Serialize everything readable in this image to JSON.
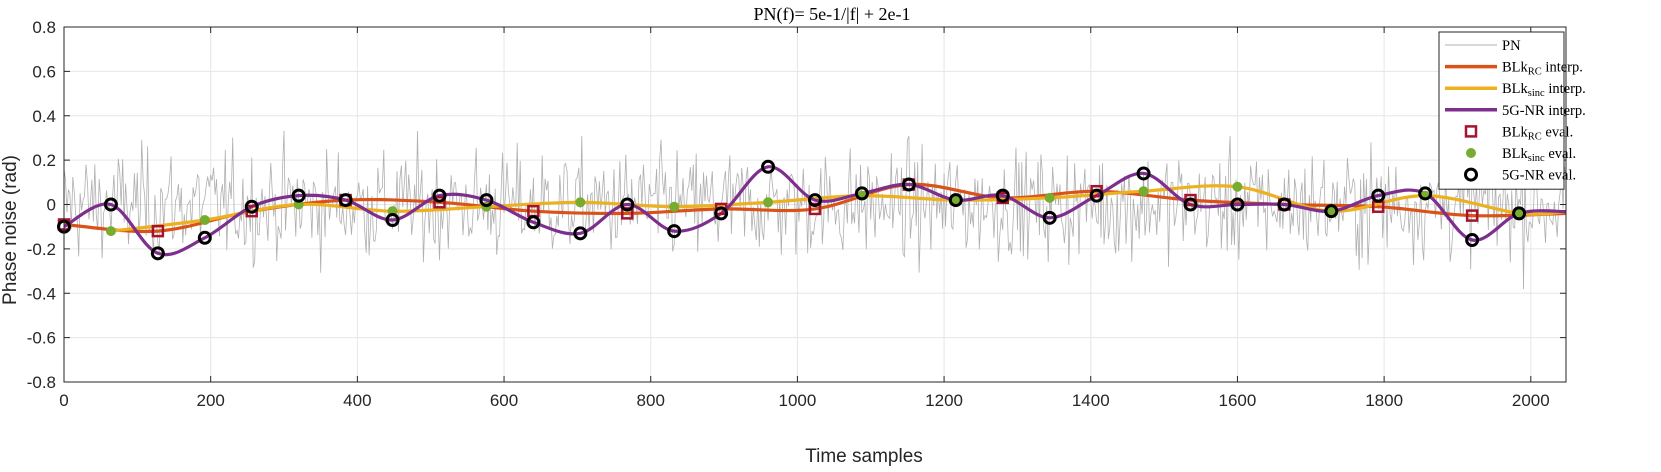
{
  "chart_data": {
    "type": "line",
    "title": "PN(f)= 5e-1/|f| + 2e-1",
    "xlabel": "Time samples",
    "ylabel": "Phase noise (rad)",
    "xlim": [
      0,
      2048
    ],
    "ylim": [
      -0.8,
      0.8
    ],
    "xticks": [
      0,
      200,
      400,
      600,
      800,
      1000,
      1200,
      1400,
      1600,
      1800,
      2000
    ],
    "yticks": [
      -0.8,
      -0.6,
      -0.4,
      -0.2,
      0,
      0.2,
      0.4,
      0.6,
      0.8
    ],
    "grid": true,
    "legend_position": "top-right",
    "colors": {
      "pn": "#b0b0b0",
      "blk_rc": "#d95319",
      "blk_sinc": "#edb120",
      "nr": "#7e2f8e",
      "blk_rc_marker": "#a2142f",
      "blk_sinc_marker": "#77ac30",
      "nr_marker": "#000000"
    },
    "legend": [
      {
        "key": "pn",
        "label": "PN",
        "style": "thin-line"
      },
      {
        "key": "blk_rc",
        "label": "BLk",
        "sub": "RC",
        "suffix": " interp.",
        "style": "thick-line"
      },
      {
        "key": "blk_sinc",
        "label": "BLk",
        "sub": "sinc",
        "suffix": " interp.",
        "style": "thick-line"
      },
      {
        "key": "nr",
        "label": "5G-NR interp.",
        "style": "thick-line"
      },
      {
        "key": "blk_rc_eval",
        "label": "BLk",
        "sub": "RC",
        "suffix": " eval.",
        "style": "square"
      },
      {
        "key": "blk_sinc_eval",
        "label": "BLk",
        "sub": "sinc",
        "suffix": " eval.",
        "style": "dot"
      },
      {
        "key": "nr_eval",
        "label": "5G-NR eval.",
        "style": "circle"
      }
    ],
    "series": [
      {
        "key": "blk_rc_eval",
        "name": "BLkRC eval.",
        "x": [
          0,
          128,
          256,
          384,
          512,
          640,
          768,
          896,
          1024,
          1152,
          1280,
          1408,
          1536,
          1664,
          1792,
          1920
        ],
        "y": [
          -0.09,
          -0.12,
          -0.03,
          0.02,
          0.01,
          -0.03,
          -0.04,
          -0.02,
          -0.02,
          0.09,
          0.03,
          0.06,
          0.02,
          0.0,
          -0.01,
          -0.05
        ]
      },
      {
        "key": "blk_sinc_eval",
        "name": "BLksinc eval.",
        "x": [
          64,
          192,
          320,
          448,
          576,
          704,
          832,
          960,
          1088,
          1216,
          1344,
          1472,
          1600,
          1728,
          1856,
          1984
        ],
        "y": [
          -0.12,
          -0.07,
          0.0,
          -0.03,
          -0.01,
          0.01,
          -0.01,
          0.01,
          0.04,
          0.02,
          0.03,
          0.06,
          0.08,
          -0.03,
          0.04,
          -0.04
        ]
      },
      {
        "key": "nr_eval",
        "name": "5G-NR eval.",
        "x": [
          0,
          64,
          128,
          192,
          256,
          320,
          384,
          448,
          512,
          576,
          640,
          704,
          768,
          832,
          896,
          960,
          1024,
          1088,
          1152,
          1216,
          1280,
          1344,
          1408,
          1472,
          1536,
          1600,
          1664,
          1728,
          1792,
          1856,
          1920,
          1984
        ],
        "y": [
          -0.1,
          0.0,
          -0.22,
          -0.15,
          -0.01,
          0.04,
          0.02,
          -0.07,
          0.04,
          0.02,
          -0.08,
          -0.13,
          0.0,
          -0.12,
          -0.04,
          0.17,
          0.02,
          0.05,
          0.09,
          0.02,
          0.04,
          -0.06,
          0.04,
          0.14,
          0.0,
          0.0,
          0.0,
          -0.03,
          0.04,
          0.05,
          -0.16,
          -0.04
        ]
      }
    ]
  }
}
